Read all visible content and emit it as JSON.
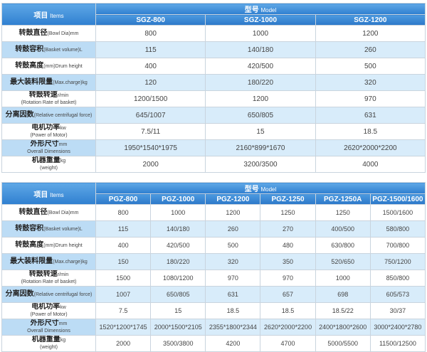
{
  "table1": {
    "corner": {
      "zh": "项目",
      "en": "Items"
    },
    "model_header": {
      "zh": "型号",
      "en": "Model"
    },
    "models": [
      "SGZ-800",
      "SGZ-1000",
      "SGZ-1200"
    ],
    "rows": [
      {
        "zh": "转鼓直径",
        "en": "(Bowl Dia)mm",
        "values": [
          "800",
          "1000",
          "1200"
        ]
      },
      {
        "zh": "转鼓容积",
        "en": "(Basket volume)L",
        "values": [
          "115",
          "140/180",
          "260"
        ]
      },
      {
        "zh": "转鼓高度",
        "en": "(mm)Drum height",
        "values": [
          "400",
          "420/500",
          "500"
        ]
      },
      {
        "zh": "最大装料限量",
        "en": "(Max.charge)kg",
        "values": [
          "120",
          "180/220",
          "320"
        ]
      },
      {
        "zh": "转鼓转速",
        "unit": "r/min",
        "en": "(Rotation Rate of basket)",
        "values": [
          "1200/1500",
          "1200",
          "970"
        ]
      },
      {
        "zh": "分离因数",
        "en": "(Relative centrifugal force)",
        "values": [
          "645/1007",
          "650/805",
          "631"
        ]
      },
      {
        "zh": "电机功率",
        "unit": "kw",
        "en": "(Power of Motor)",
        "values": [
          "7.5/11",
          "15",
          "18.5"
        ]
      },
      {
        "zh": "外形尺寸",
        "unit": "mm",
        "en": "Overall Dimensions",
        "values": [
          "1950*1540*1975",
          "2160*899*1670",
          "2620*2000*2200"
        ]
      },
      {
        "zh": "机器重量",
        "unit": "kg",
        "en": "(weight)",
        "values": [
          "2000",
          "3200/3500",
          "4000"
        ]
      }
    ]
  },
  "table2": {
    "corner": {
      "zh": "项目",
      "en": "Items"
    },
    "model_header": {
      "zh": "型号",
      "en": "Model"
    },
    "models": [
      "PGZ-800",
      "PGZ-1000",
      "PGZ-1200",
      "PGZ-1250",
      "PGZ-1250A",
      "PGZ-1500/1600"
    ],
    "rows": [
      {
        "zh": "转鼓直径",
        "en": "(Bowl Dia)mm",
        "values": [
          "800",
          "1000",
          "1200",
          "1250",
          "1250",
          "1500/1600"
        ]
      },
      {
        "zh": "转鼓容积",
        "en": "(Basket volume)L",
        "values": [
          "115",
          "140/180",
          "260",
          "270",
          "400/500",
          "580/800"
        ]
      },
      {
        "zh": "转鼓高度",
        "en": "(mm)Drum height",
        "values": [
          "400",
          "420/500",
          "500",
          "480",
          "630/800",
          "700/800"
        ]
      },
      {
        "zh": "最大装料限量",
        "en": "(Max.charge)kg",
        "values": [
          "150",
          "180/220",
          "320",
          "350",
          "520/650",
          "750/1200"
        ]
      },
      {
        "zh": "转鼓转速",
        "unit": "r/min",
        "en": "(Rotation Rate of basket)",
        "values": [
          "1500",
          "1080/1200",
          "970",
          "970",
          "1000",
          "850/800"
        ]
      },
      {
        "zh": "分离因数",
        "en": "(Relative centrifugal force)",
        "values": [
          "1007",
          "650/805",
          "631",
          "657",
          "698",
          "605/573"
        ]
      },
      {
        "zh": "电机功率",
        "unit": "kw",
        "en": "(Power of Motor)",
        "values": [
          "7.5",
          "15",
          "18.5",
          "18.5",
          "18.5/22",
          "30/37"
        ]
      },
      {
        "zh": "外形尺寸",
        "unit": "mm",
        "en": "Overall Dimensions",
        "values": [
          "1520*1200*1745",
          "2000*1500*2105",
          "2355*1800*2344",
          "2620*2000*2200",
          "2400*1800*2600",
          "3000*2400*2780"
        ]
      },
      {
        "zh": "机器重量",
        "unit": "kg",
        "en": "(weight)",
        "values": [
          "2000",
          "3500/3800",
          "4200",
          "4700",
          "5000/5500",
          "11500/12500"
        ]
      }
    ]
  }
}
